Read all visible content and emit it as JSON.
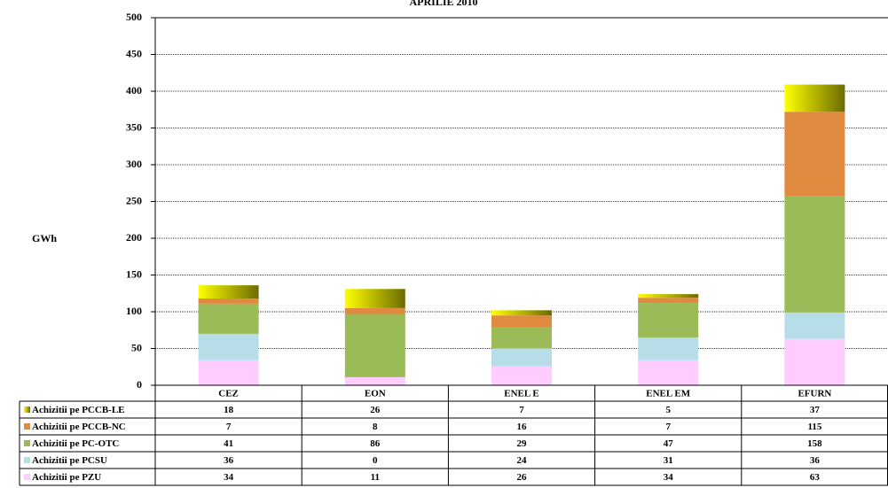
{
  "chart_data": {
    "type": "bar",
    "stacked": true,
    "title": "APRILIE 2010",
    "y_label": "GWh",
    "categories": [
      "CEZ",
      "EON",
      "ENEL E",
      "ENEL EM",
      "EFURN"
    ],
    "series": [
      {
        "name": "Achizitii pe PZU",
        "color": "#ffccff",
        "values": [
          34,
          11,
          26,
          34,
          63
        ]
      },
      {
        "name": "Achizitii pe PCSU",
        "color": "#b7dee8",
        "values": [
          36,
          0,
          24,
          31,
          36
        ]
      },
      {
        "name": "Achizitii pe PC-OTC",
        "color": "#9bbb59",
        "values": [
          41,
          86,
          29,
          47,
          158
        ]
      },
      {
        "name": "Achizitii pe PCCB-NC",
        "color": "#e08a40",
        "values": [
          7,
          8,
          16,
          7,
          115
        ]
      },
      {
        "name": "Achizitii pe PCCB-LE",
        "color": "#ffff00",
        "gradient": "#6b6b00",
        "values": [
          18,
          26,
          7,
          5,
          37
        ]
      }
    ],
    "ylim": [
      0,
      500
    ],
    "yticks": [
      0,
      50,
      100,
      150,
      200,
      250,
      300,
      350,
      400,
      450,
      500
    ],
    "grid": true
  }
}
